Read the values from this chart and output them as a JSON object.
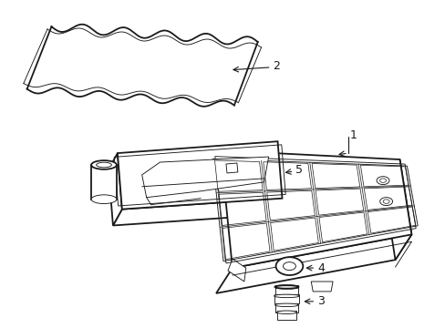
{
  "background_color": "#ffffff",
  "line_color": "#1a1a1a",
  "lw_main": 1.3,
  "lw_thin": 0.65,
  "lw_detail": 0.5,
  "figure_width": 4.89,
  "figure_height": 3.6,
  "dpi": 100
}
